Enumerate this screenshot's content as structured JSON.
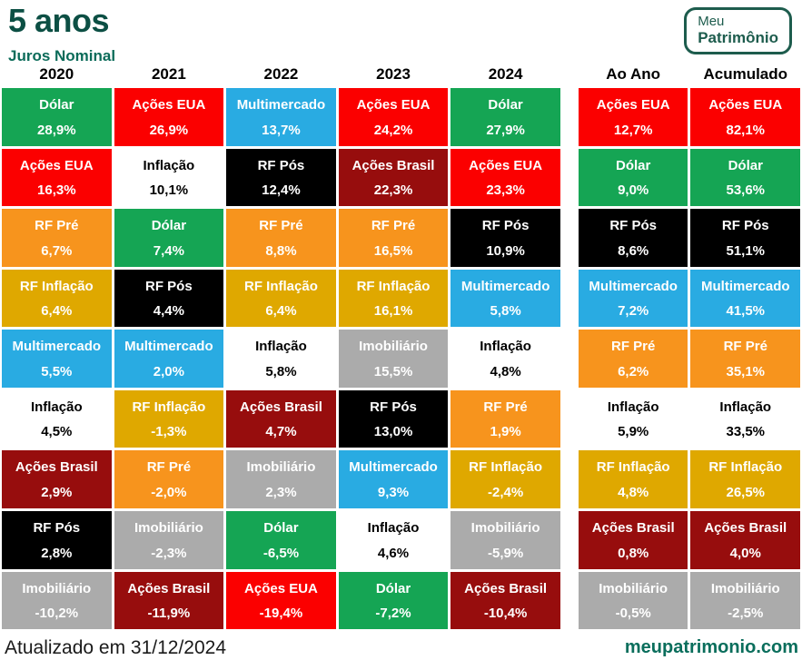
{
  "page": {
    "title": "5 anos",
    "subtitle": "Juros Nominal"
  },
  "logo": {
    "line1": "Meu",
    "line2": "Patrimônio"
  },
  "footer": {
    "left": "Atualizado em 31/12/2024",
    "right": "meupatrimonio.com"
  },
  "colors": {
    "title_teal": "#0c4f44",
    "subtitle_teal": "#0b6b59",
    "logo_green": "#1d5c4d",
    "footer_link_teal": "#0a6e5c"
  },
  "chart_data": {
    "type": "table",
    "title": "5 anos",
    "subtitle": "Juros Nominal",
    "description": "Periodic table of nominal returns by asset class per year, ranked best to worst top to bottom",
    "asset_colors": {
      "Dólar": {
        "bg": "#15a554",
        "fg": "#ffffff"
      },
      "Ações EUA": {
        "bg": "#fb0000",
        "fg": "#ffffff"
      },
      "Multimercado": {
        "bg": "#29abe2",
        "fg": "#ffffff"
      },
      "Ações Brasil": {
        "bg": "#970d0d",
        "fg": "#ffffff"
      },
      "RF Pós": {
        "bg": "#000000",
        "fg": "#ffffff"
      },
      "RF Pré": {
        "bg": "#f7941d",
        "fg": "#ffffff"
      },
      "RF Inflação": {
        "bg": "#dfa800",
        "fg": "#ffffff"
      },
      "Inflação": {
        "bg": "#ffffff",
        "fg": "#000000"
      },
      "Imobiliário": {
        "bg": "#ababab",
        "fg": "#ffffff"
      }
    },
    "columns": [
      {
        "label": "2020",
        "group": "year",
        "items": [
          [
            "Dólar",
            "28,9%"
          ],
          [
            "Ações EUA",
            "16,3%"
          ],
          [
            "RF Pré",
            "6,7%"
          ],
          [
            "RF Inflação",
            "6,4%"
          ],
          [
            "Multimercado",
            "5,5%"
          ],
          [
            "Inflação",
            "4,5%"
          ],
          [
            "Ações Brasil",
            "2,9%"
          ],
          [
            "RF Pós",
            "2,8%"
          ],
          [
            "Imobiliário",
            "-10,2%"
          ]
        ]
      },
      {
        "label": "2021",
        "group": "year",
        "items": [
          [
            "Ações EUA",
            "26,9%"
          ],
          [
            "Inflação",
            "10,1%"
          ],
          [
            "Dólar",
            "7,4%"
          ],
          [
            "RF Pós",
            "4,4%"
          ],
          [
            "Multimercado",
            "2,0%"
          ],
          [
            "RF Inflação",
            "-1,3%"
          ],
          [
            "RF Pré",
            "-2,0%"
          ],
          [
            "Imobiliário",
            "-2,3%"
          ],
          [
            "Ações Brasil",
            "-11,9%"
          ]
        ]
      },
      {
        "label": "2022",
        "group": "year",
        "items": [
          [
            "Multimercado",
            "13,7%"
          ],
          [
            "RF Pós",
            "12,4%"
          ],
          [
            "RF Pré",
            "8,8%"
          ],
          [
            "RF Inflação",
            "6,4%"
          ],
          [
            "Inflação",
            "5,8%"
          ],
          [
            "Ações Brasil",
            "4,7%"
          ],
          [
            "Imobiliário",
            "2,3%"
          ],
          [
            "Dólar",
            "-6,5%"
          ],
          [
            "Ações EUA",
            "-19,4%"
          ]
        ]
      },
      {
        "label": "2023",
        "group": "year",
        "items": [
          [
            "Ações EUA",
            "24,2%"
          ],
          [
            "Ações Brasil",
            "22,3%"
          ],
          [
            "RF Pré",
            "16,5%"
          ],
          [
            "RF Inflação",
            "16,1%"
          ],
          [
            "Imobiliário",
            "15,5%"
          ],
          [
            "RF Pós",
            "13,0%"
          ],
          [
            "Multimercado",
            "9,3%"
          ],
          [
            "Inflação",
            "4,6%"
          ],
          [
            "Dólar",
            "-7,2%"
          ]
        ]
      },
      {
        "label": "2024",
        "group": "year",
        "items": [
          [
            "Dólar",
            "27,9%"
          ],
          [
            "Ações EUA",
            "23,3%"
          ],
          [
            "RF Pós",
            "10,9%"
          ],
          [
            "Multimercado",
            "5,8%"
          ],
          [
            "Inflação",
            "4,8%"
          ],
          [
            "RF Pré",
            "1,9%"
          ],
          [
            "RF Inflação",
            "-2,4%"
          ],
          [
            "Imobiliário",
            "-5,9%"
          ],
          [
            "Ações Brasil",
            "-10,4%"
          ]
        ]
      },
      {
        "label": "Ao Ano",
        "group": "summary",
        "items": [
          [
            "Ações EUA",
            "12,7%"
          ],
          [
            "Dólar",
            "9,0%"
          ],
          [
            "RF Pós",
            "8,6%"
          ],
          [
            "Multimercado",
            "7,2%"
          ],
          [
            "RF Pré",
            "6,2%"
          ],
          [
            "Inflação",
            "5,9%"
          ],
          [
            "RF Inflação",
            "4,8%"
          ],
          [
            "Ações Brasil",
            "0,8%"
          ],
          [
            "Imobiliário",
            "-0,5%"
          ]
        ]
      },
      {
        "label": "Acumulado",
        "group": "summary",
        "items": [
          [
            "Ações EUA",
            "82,1%"
          ],
          [
            "Dólar",
            "53,6%"
          ],
          [
            "RF Pós",
            "51,1%"
          ],
          [
            "Multimercado",
            "41,5%"
          ],
          [
            "RF Pré",
            "35,1%"
          ],
          [
            "Inflação",
            "33,5%"
          ],
          [
            "RF Inflação",
            "26,5%"
          ],
          [
            "Ações Brasil",
            "4,0%"
          ],
          [
            "Imobiliário",
            "-2,5%"
          ]
        ]
      }
    ]
  }
}
